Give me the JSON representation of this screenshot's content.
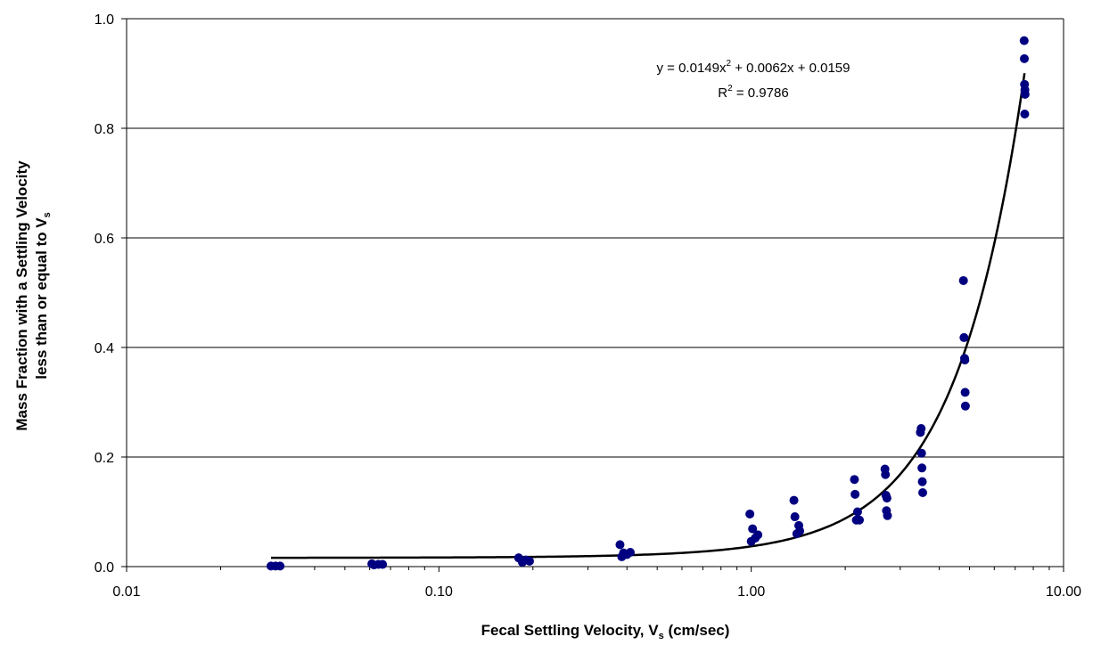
{
  "chart_data": {
    "type": "scatter",
    "title": "",
    "xlabel": {
      "main": "Fecal Settling Velocity, V",
      "sub": "s",
      "tail": " (cm/sec)"
    },
    "ylabel": {
      "line1": "Mass Fraction with a Settling Velocity",
      "line2_main": "less than or equal to V",
      "line2_sub": "s"
    },
    "x_scale": "log",
    "xlim": [
      0.01,
      10
    ],
    "ylim": [
      0,
      1
    ],
    "x_ticks": [
      {
        "value": 0.01,
        "label": "0.01"
      },
      {
        "value": 0.1,
        "label": "0.10"
      },
      {
        "value": 1,
        "label": "1.00"
      },
      {
        "value": 10,
        "label": "10.00"
      }
    ],
    "y_ticks": [
      {
        "value": 0.0,
        "label": "0.0"
      },
      {
        "value": 0.2,
        "label": "0.2"
      },
      {
        "value": 0.4,
        "label": "0.4"
      },
      {
        "value": 0.6,
        "label": "0.6"
      },
      {
        "value": 0.8,
        "label": "0.8"
      },
      {
        "value": 1.0,
        "label": "1.0"
      }
    ],
    "grid": "horizontal",
    "legend": "none",
    "marker_color": "#000080",
    "trendline_color": "#000000",
    "series": [
      {
        "points": [
          [
            0.029,
            0.001
          ],
          [
            0.03,
            0.001
          ],
          [
            0.031,
            0.001
          ],
          [
            0.061,
            0.005
          ],
          [
            0.062,
            0.003
          ],
          [
            0.064,
            0.004
          ],
          [
            0.066,
            0.004
          ],
          [
            0.18,
            0.016
          ],
          [
            0.185,
            0.008
          ],
          [
            0.19,
            0.012
          ],
          [
            0.195,
            0.01
          ],
          [
            0.38,
            0.04
          ],
          [
            0.385,
            0.018
          ],
          [
            0.39,
            0.025
          ],
          [
            0.4,
            0.022
          ],
          [
            0.41,
            0.026
          ],
          [
            0.99,
            0.096
          ],
          [
            1.0,
            0.046
          ],
          [
            1.01,
            0.069
          ],
          [
            1.03,
            0.052
          ],
          [
            1.05,
            0.058
          ],
          [
            1.37,
            0.121
          ],
          [
            1.38,
            0.091
          ],
          [
            1.4,
            0.06
          ],
          [
            1.42,
            0.075
          ],
          [
            1.43,
            0.065
          ],
          [
            2.14,
            0.159
          ],
          [
            2.15,
            0.132
          ],
          [
            2.17,
            0.085
          ],
          [
            2.19,
            0.1
          ],
          [
            2.22,
            0.085
          ],
          [
            2.68,
            0.178
          ],
          [
            2.69,
            0.168
          ],
          [
            2.7,
            0.13
          ],
          [
            2.71,
            0.102
          ],
          [
            2.72,
            0.125
          ],
          [
            2.73,
            0.093
          ],
          [
            3.48,
            0.245
          ],
          [
            3.5,
            0.252
          ],
          [
            3.51,
            0.207
          ],
          [
            3.52,
            0.18
          ],
          [
            3.53,
            0.155
          ],
          [
            3.54,
            0.135
          ],
          [
            4.78,
            0.522
          ],
          [
            4.8,
            0.418
          ],
          [
            4.82,
            0.38
          ],
          [
            4.83,
            0.377
          ],
          [
            4.84,
            0.318
          ],
          [
            4.85,
            0.293
          ],
          [
            7.48,
            0.96
          ],
          [
            7.49,
            0.927
          ],
          [
            7.5,
            0.88
          ],
          [
            7.52,
            0.87
          ],
          [
            7.53,
            0.862
          ],
          [
            7.51,
            0.826
          ]
        ]
      }
    ],
    "trendline": {
      "coefficients": [
        0.0149,
        0.0062,
        0.0159
      ],
      "x_range": [
        0.029,
        7.5
      ]
    },
    "annotations": {
      "equation": {
        "prefix": "y = 0.0149x",
        "sup": "2",
        "suffix": " + 0.0062x + 0.0159"
      },
      "r_squared": {
        "prefix": "R",
        "sup": "2",
        "suffix": " = 0.9786"
      }
    }
  }
}
